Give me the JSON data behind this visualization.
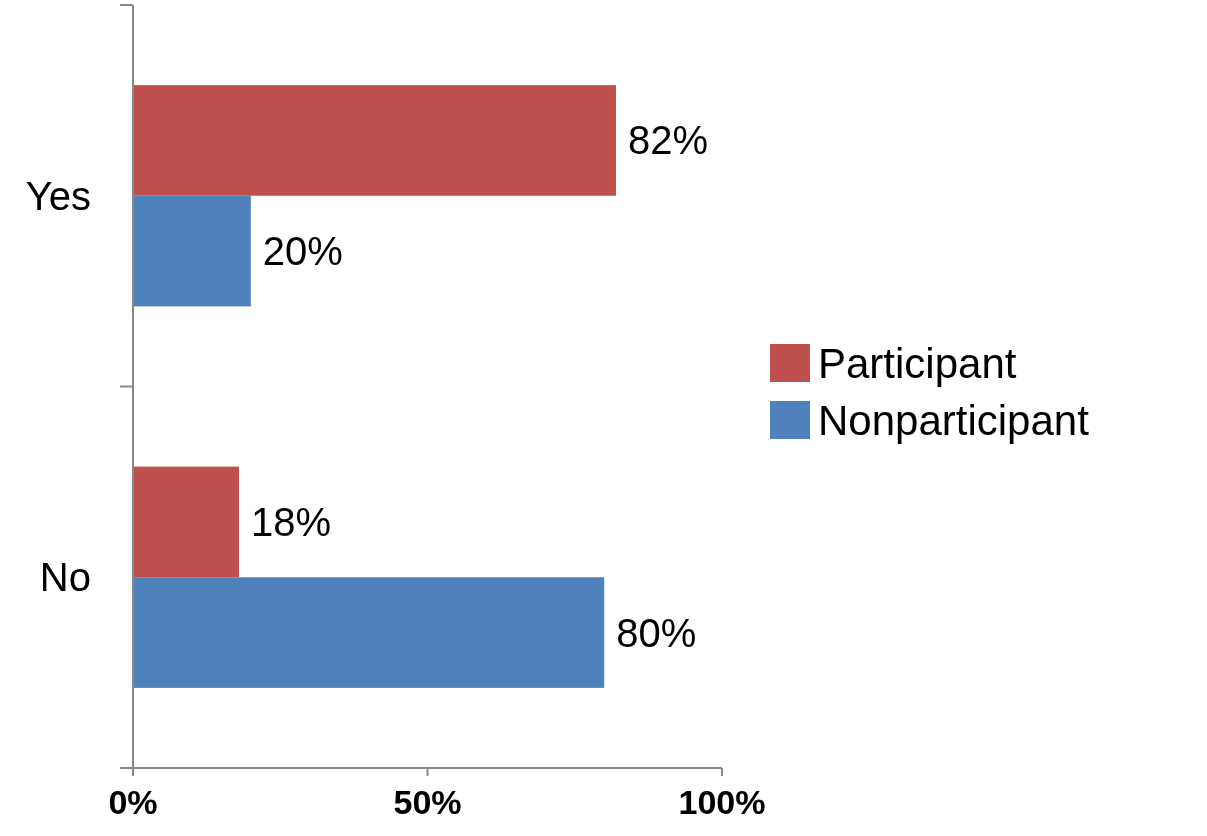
{
  "chart_data": {
    "type": "bar",
    "orientation": "horizontal",
    "categories": [
      "Yes",
      "No"
    ],
    "series": [
      {
        "name": "Participant",
        "color": "#c0504d",
        "values": [
          82,
          18
        ],
        "value_labels": [
          "82%",
          "18%"
        ]
      },
      {
        "name": "Nonparticipant",
        "color": "#4f81bd",
        "values": [
          20,
          80
        ],
        "value_labels": [
          "20%",
          "80%"
        ]
      }
    ],
    "xlim": [
      0,
      100
    ],
    "xticks": [
      {
        "value": 0,
        "label": "0%"
      },
      {
        "value": 50,
        "label": "50%"
      },
      {
        "value": 100,
        "label": "100%"
      }
    ],
    "legend": "right",
    "grid": false
  }
}
